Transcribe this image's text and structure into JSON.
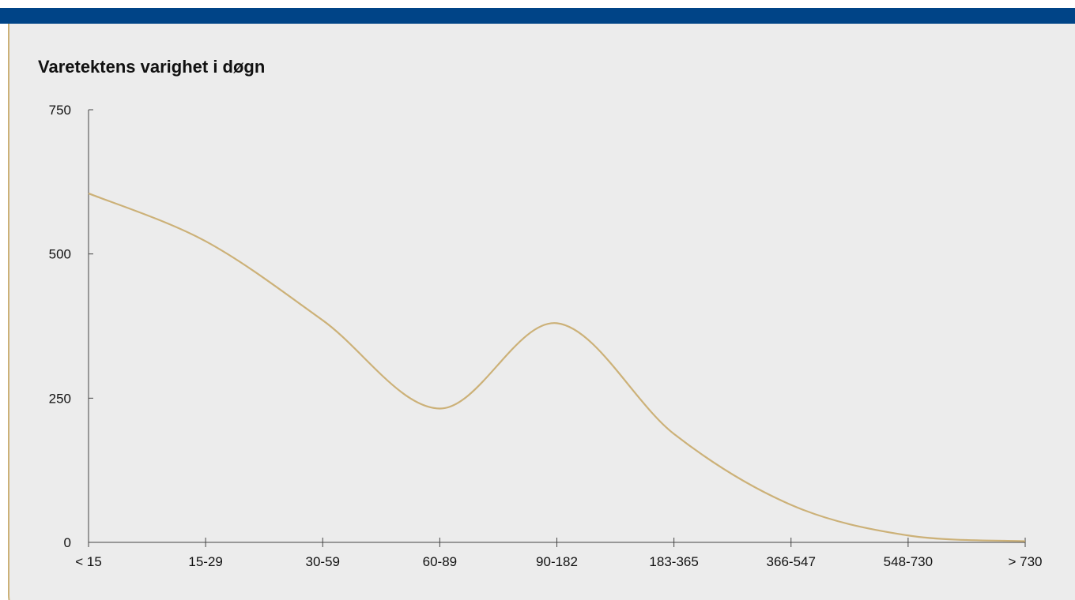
{
  "chart_data": {
    "type": "line",
    "title": "Varetektens varighet i døgn",
    "xlabel": "",
    "ylabel": "",
    "categories": [
      "< 15",
      "15-29",
      "30-59",
      "60-89",
      "90-182",
      "183-365",
      "366-547",
      "548-730",
      "> 730"
    ],
    "series": [
      {
        "values": [
          605,
          522,
          385,
          232,
          380,
          188,
          65,
          12,
          2
        ]
      }
    ],
    "yticks": [
      0,
      250,
      500,
      750
    ],
    "ylim": [
      0,
      750
    ],
    "grid": false,
    "legend": "none",
    "line_color": "#ccb178",
    "axis_color": "#444444",
    "header_color": "#004487",
    "panel_color": "#ececec",
    "border_color": "#ccb178"
  }
}
